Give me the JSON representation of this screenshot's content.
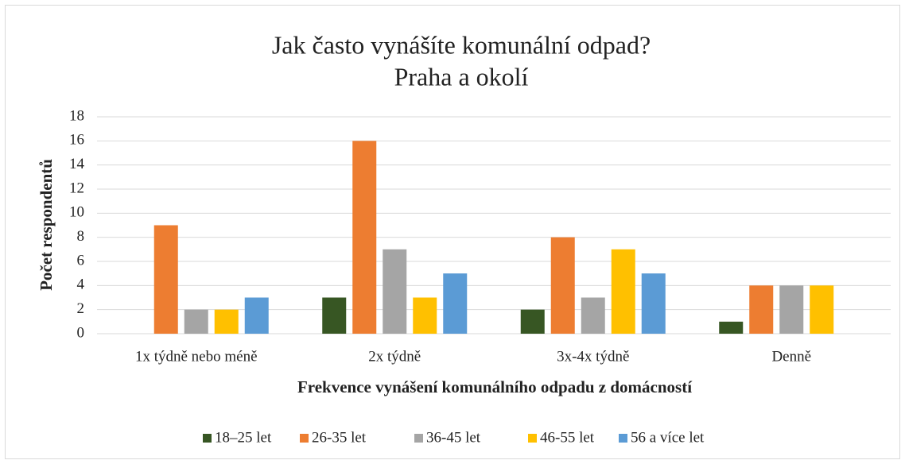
{
  "chart_data": {
    "type": "bar",
    "title": "Jak často vynášíte komunální odpad?",
    "subtitle": "Praha a okolí",
    "x_label": "Frekvence vynášení komunálního odpadu z domácností",
    "y_label": "Počet respondentů",
    "categories": [
      "1x týdně nebo méně",
      "2x týdně",
      "3x-4x týdně",
      "Denně"
    ],
    "series": [
      {
        "name": "18–25 let",
        "color": "#375623",
        "values": [
          0,
          3,
          2,
          1
        ]
      },
      {
        "name": "26-35 let",
        "color": "#ed7d31",
        "values": [
          9,
          16,
          8,
          4
        ]
      },
      {
        "name": "36-45 let",
        "color": "#a5a5a5",
        "values": [
          2,
          7,
          3,
          4
        ]
      },
      {
        "name": "46-55 let",
        "color": "#ffc000",
        "values": [
          2,
          3,
          7,
          4
        ]
      },
      {
        "name": "56 a více let",
        "color": "#5b9bd5",
        "values": [
          3,
          5,
          5,
          0
        ]
      }
    ],
    "ylim": [
      0,
      18
    ],
    "yticks": [
      0,
      2,
      4,
      6,
      8,
      10,
      12,
      14,
      16,
      18
    ],
    "grid": true,
    "legend": "bottom"
  }
}
